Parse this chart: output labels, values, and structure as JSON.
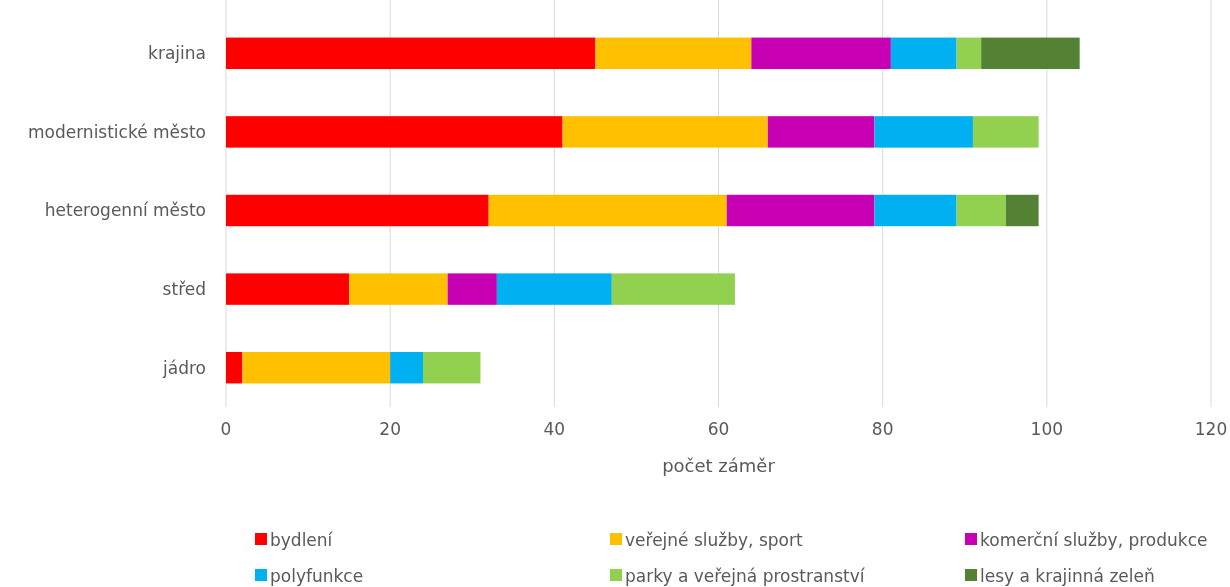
{
  "chart_data": {
    "type": "bar",
    "orientation": "horizontal",
    "stacked": true,
    "xlabel": "počet záměr",
    "categories": [
      "krajina",
      "modernistické město",
      "heterogenní město",
      "střed",
      "jádro"
    ],
    "series": [
      {
        "name": "bydlení",
        "color": "#ff0000",
        "values": [
          45,
          41,
          32,
          15,
          2
        ]
      },
      {
        "name": "veřejné služby, sport",
        "color": "#ffc000",
        "values": [
          19,
          25,
          29,
          12,
          18
        ]
      },
      {
        "name": "komerční služby, produkce",
        "color": "#c800b4",
        "values": [
          17,
          13,
          18,
          6,
          0
        ]
      },
      {
        "name": "polyfunkce",
        "color": "#00b0f0",
        "values": [
          8,
          12,
          10,
          14,
          4
        ]
      },
      {
        "name": "parky a veřejná prostranství",
        "color": "#92d050",
        "values": [
          3,
          8,
          6,
          15,
          7
        ]
      },
      {
        "name": "lesy a krajinná zeleň",
        "color": "#548235",
        "values": [
          12,
          0,
          4,
          0,
          0
        ]
      }
    ],
    "xlim": [
      0,
      120
    ],
    "xticks": [
      0,
      20,
      40,
      60,
      80,
      100,
      120
    ],
    "grid": "x",
    "legend": "bottom"
  }
}
